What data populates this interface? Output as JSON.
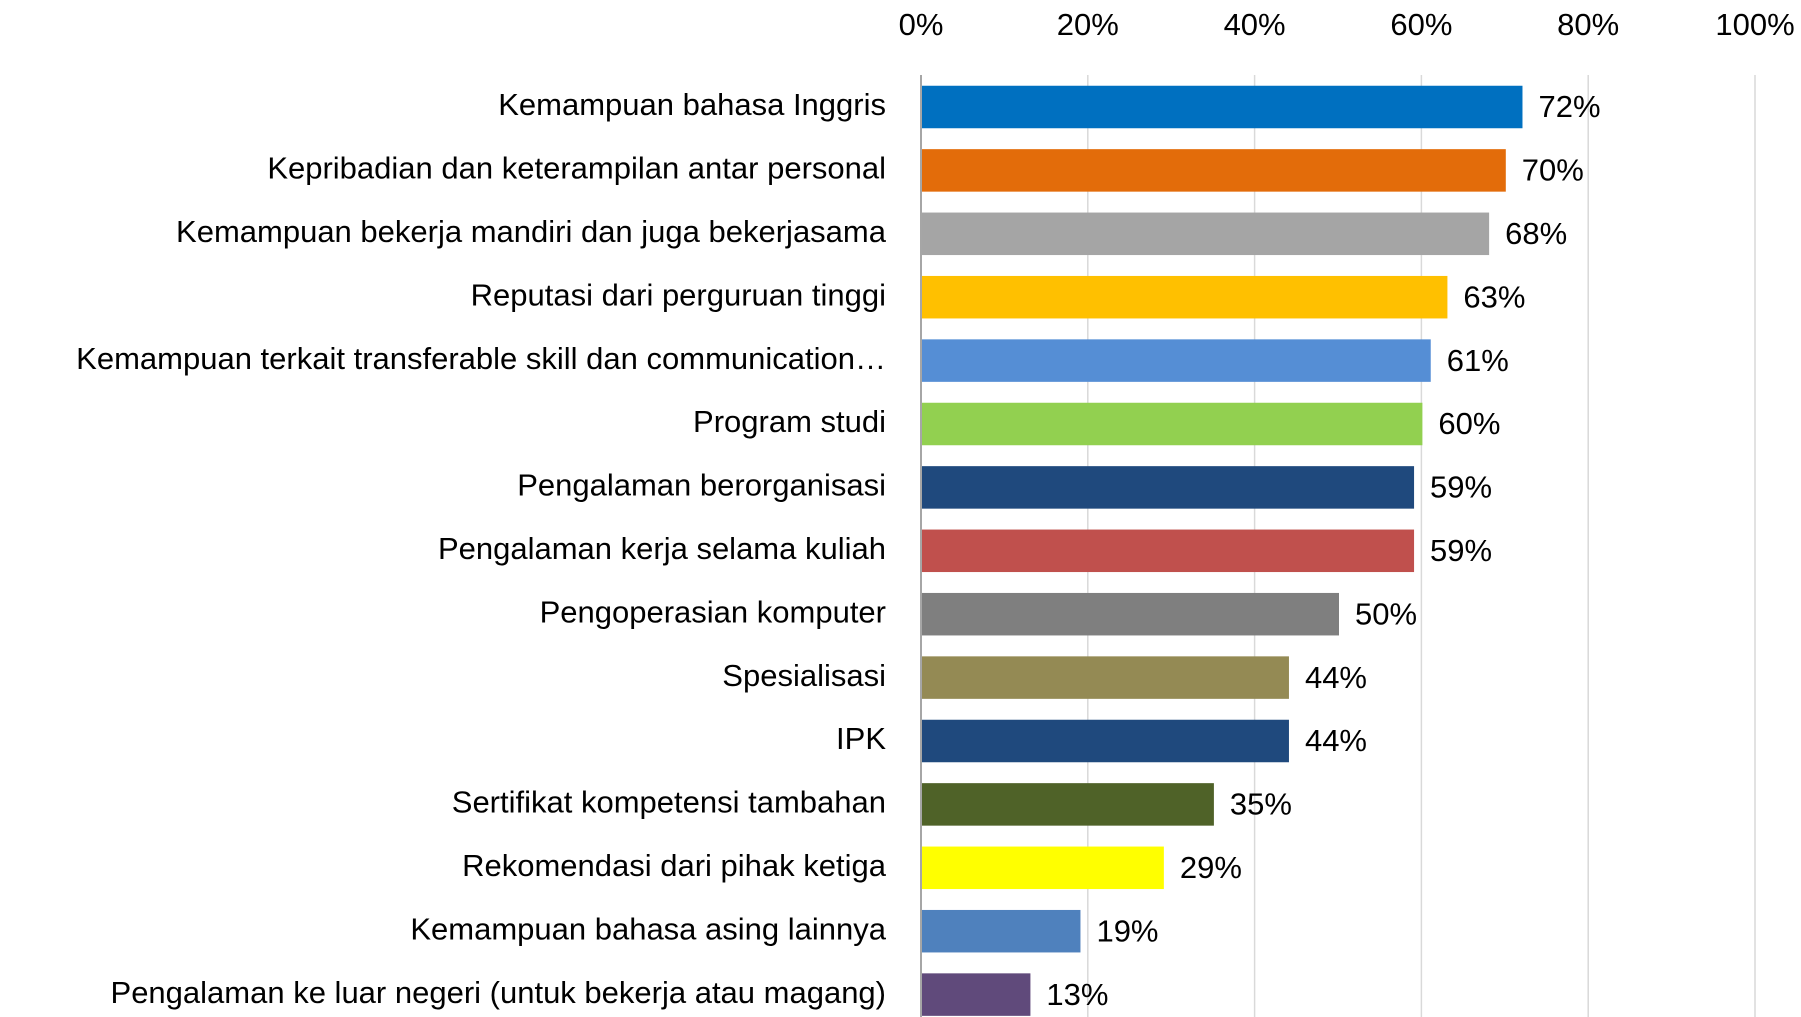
{
  "chart_data": {
    "type": "bar",
    "orientation": "horizontal",
    "categories": [
      "Kemampuan bahasa Inggris",
      "Kepribadian dan keterampilan antar personal",
      "Kemampuan bekerja mandiri dan juga bekerjasama",
      "Reputasi dari perguruan tinggi",
      "Kemampuan terkait transferable skill dan communication…",
      "Program studi",
      "Pengalaman berorganisasi",
      "Pengalaman kerja selama kuliah",
      "Pengoperasian komputer",
      "Spesialisasi",
      "IPK",
      "Sertifikat kompetensi tambahan",
      "Rekomendasi dari pihak ketiga",
      "Kemampuan bahasa asing lainnya",
      "Pengalaman ke luar negeri (untuk bekerja atau magang)"
    ],
    "values": [
      72,
      70,
      68,
      63,
      61,
      60,
      59,
      59,
      50,
      44,
      44,
      35,
      29,
      19,
      13
    ],
    "value_labels": [
      "72%",
      "70%",
      "68%",
      "63%",
      "61%",
      "60%",
      "59%",
      "59%",
      "50%",
      "44%",
      "44%",
      "35%",
      "29%",
      "19%",
      "13%"
    ],
    "colors": [
      "#0070c0",
      "#e36c0a",
      "#a5a5a5",
      "#ffc000",
      "#558ed5",
      "#92d050",
      "#1f497d",
      "#c0504d",
      "#7f7f7f",
      "#948a54",
      "#1f497d",
      "#4f6228",
      "#ffff00",
      "#4f81bd",
      "#604a7b"
    ],
    "xlim": [
      0,
      100
    ],
    "xticks": [
      {
        "value": 0,
        "label": "0%"
      },
      {
        "value": 20,
        "label": "20%"
      },
      {
        "value": 40,
        "label": "40%"
      },
      {
        "value": 60,
        "label": "60%"
      },
      {
        "value": 80,
        "label": "80%"
      },
      {
        "value": 100,
        "label": "100%"
      }
    ],
    "grid": true
  }
}
